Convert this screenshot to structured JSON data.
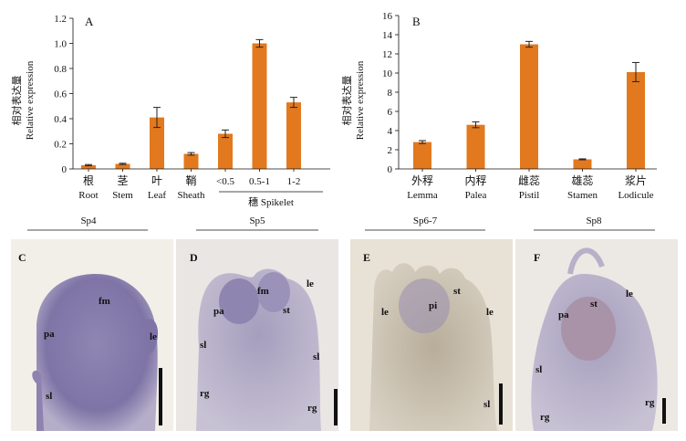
{
  "figure": {
    "panel_a": {
      "letter": "A",
      "ylabel_cn": "相对表达量",
      "ylabel_en": "Relative expression",
      "categories_cn": [
        "根",
        "茎",
        "叶",
        "鞘",
        "",
        "",
        ""
      ],
      "categories_en": [
        "Root",
        "Stem",
        "Leaf",
        "Sheath",
        "<0.5",
        "0.5-1",
        "1-2"
      ],
      "group_label": "穗 Spikelet",
      "y_ticks": [
        "0",
        "0.2",
        "0.4",
        "0.6",
        "0.8",
        "1.0",
        "1.2"
      ]
    },
    "panel_b": {
      "letter": "B",
      "ylabel_cn": "相对表达量",
      "ylabel_en": "Relative expression",
      "categories_cn": [
        "外稃",
        "内稃",
        "雌蕊",
        "雄蕊",
        "浆片"
      ],
      "categories_en": [
        "Lemma",
        "Palea",
        "Pistil",
        "Stamen",
        "Lodicule"
      ],
      "y_ticks": [
        "0",
        "2",
        "4",
        "6",
        "8",
        "10",
        "12",
        "14",
        "16"
      ]
    },
    "stages": [
      "Sp4",
      "Sp5",
      "Sp6-7",
      "Sp8"
    ],
    "micrographs": [
      {
        "letter": "C",
        "labels": [
          "fm",
          "pa",
          "le",
          "sl"
        ]
      },
      {
        "letter": "D",
        "labels": [
          "pa",
          "fm",
          "st",
          "le",
          "sl",
          "sl",
          "rg",
          "rg"
        ]
      },
      {
        "letter": "E",
        "labels": [
          "st",
          "pi",
          "le",
          "le",
          "sl"
        ]
      },
      {
        "letter": "F",
        "labels": [
          "pa",
          "st",
          "le",
          "sl",
          "rg",
          "rg"
        ]
      }
    ],
    "colors": {
      "bar": "#e2791e",
      "tissue": "#8a7fae",
      "background": "#ffffff"
    }
  },
  "chart_data": [
    {
      "type": "bar",
      "title": "",
      "ylabel": "Relative expression",
      "categories": [
        "Root",
        "Stem",
        "Leaf",
        "Sheath",
        "<0.5",
        "0.5-1",
        "1-2"
      ],
      "values": [
        0.03,
        0.04,
        0.41,
        0.12,
        0.28,
        1.0,
        0.53
      ],
      "errors": [
        0.005,
        0.005,
        0.08,
        0.01,
        0.03,
        0.03,
        0.04
      ],
      "ylim": [
        0,
        1.2
      ]
    },
    {
      "type": "bar",
      "title": "",
      "ylabel": "Relative expression",
      "categories": [
        "Lemma",
        "Palea",
        "Pistil",
        "Stamen",
        "Lodicule"
      ],
      "values": [
        2.8,
        4.6,
        13.0,
        1.0,
        10.1
      ],
      "errors": [
        0.15,
        0.3,
        0.3,
        0.05,
        1.0
      ],
      "ylim": [
        0,
        16
      ]
    }
  ]
}
